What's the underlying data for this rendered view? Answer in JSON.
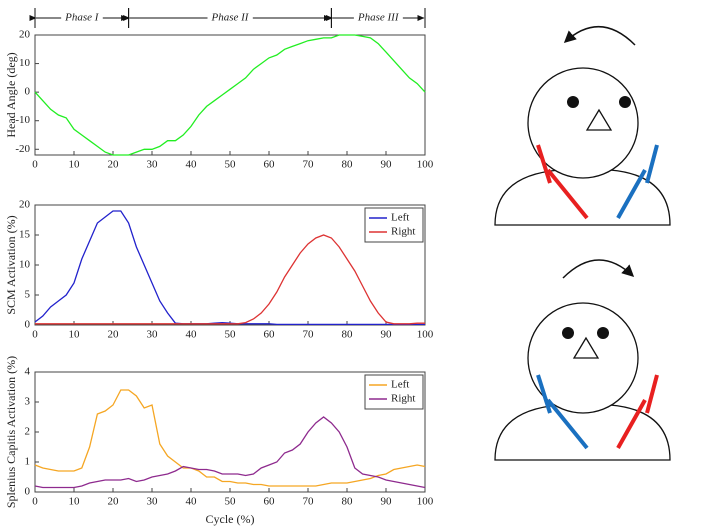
{
  "chart_data": [
    {
      "type": "line",
      "ylabel": "Head Angle (deg)",
      "ylim": [
        -22,
        20
      ],
      "yticks": [
        -20,
        -10,
        0,
        10,
        20
      ],
      "xlim": [
        0,
        100
      ],
      "xticks": [
        0,
        10,
        20,
        30,
        40,
        50,
        60,
        70,
        80,
        90,
        100
      ],
      "phases": [
        {
          "label": "Phase I",
          "start": 0,
          "end": 24
        },
        {
          "label": "Phase II",
          "start": 24,
          "end": 76
        },
        {
          "label": "Phase III",
          "start": 76,
          "end": 100
        }
      ],
      "x": [
        0,
        2,
        4,
        6,
        8,
        10,
        12,
        14,
        16,
        18,
        20,
        22,
        24,
        26,
        28,
        30,
        32,
        34,
        36,
        38,
        40,
        42,
        44,
        46,
        48,
        50,
        52,
        54,
        56,
        58,
        60,
        62,
        64,
        66,
        68,
        70,
        72,
        74,
        76,
        78,
        80,
        82,
        84,
        86,
        88,
        90,
        92,
        94,
        96,
        98,
        100
      ],
      "series": [
        {
          "color": "#22ee22",
          "values": [
            0,
            -3,
            -6,
            -8,
            -9,
            -13,
            -15,
            -17,
            -19,
            -21,
            -22,
            -22,
            -22,
            -21,
            -20,
            -20,
            -19,
            -17,
            -17,
            -15,
            -12,
            -8,
            -5,
            -3,
            -1,
            1,
            3,
            5,
            8,
            10,
            12,
            13,
            15,
            16,
            17,
            18,
            18.5,
            19,
            19,
            20,
            20,
            20,
            19.5,
            19,
            17,
            14,
            11,
            8,
            5,
            3,
            0
          ]
        }
      ]
    },
    {
      "type": "line",
      "ylabel": "SCM Activation (%)",
      "ylim": [
        0,
        20
      ],
      "yticks": [
        0,
        5,
        10,
        15,
        20
      ],
      "xlim": [
        0,
        100
      ],
      "xticks": [
        0,
        10,
        20,
        30,
        40,
        50,
        60,
        70,
        80,
        90,
        100
      ],
      "legend": "upper right",
      "x": [
        0,
        2,
        4,
        6,
        8,
        10,
        12,
        14,
        16,
        18,
        20,
        22,
        24,
        26,
        28,
        30,
        32,
        34,
        36,
        38,
        40,
        42,
        44,
        46,
        48,
        50,
        52,
        54,
        56,
        58,
        60,
        62,
        64,
        66,
        68,
        70,
        72,
        74,
        76,
        78,
        80,
        82,
        84,
        86,
        88,
        90,
        92,
        94,
        96,
        98,
        100
      ],
      "series": [
        {
          "name": "Left",
          "color": "#2222cc",
          "values": [
            0.5,
            1.5,
            3,
            4,
            5,
            7,
            11,
            14,
            17,
            18,
            19,
            19,
            17,
            13,
            10,
            7,
            4,
            2,
            0.3,
            0.2,
            0.2,
            0.2,
            0.2,
            0.3,
            0.4,
            0.3,
            0.2,
            0.2,
            0.2,
            0.2,
            0.2,
            0.1,
            0.1,
            0.1,
            0.1,
            0.1,
            0.1,
            0.1,
            0.1,
            0.1,
            0.1,
            0.1,
            0.1,
            0.1,
            0.1,
            0.1,
            0.1,
            0.1,
            0.1,
            0.1,
            0.1
          ]
        },
        {
          "name": "Right",
          "color": "#dd3333",
          "values": [
            0.2,
            0.2,
            0.2,
            0.2,
            0.2,
            0.2,
            0.2,
            0.2,
            0.2,
            0.2,
            0.2,
            0.2,
            0.2,
            0.2,
            0.2,
            0.2,
            0.2,
            0.2,
            0.2,
            0.2,
            0.2,
            0.2,
            0.2,
            0.2,
            0.2,
            0.2,
            0.2,
            0.4,
            1,
            2,
            3.5,
            5.5,
            8,
            10,
            12,
            13.5,
            14.5,
            15,
            14.5,
            13,
            11,
            9,
            6.5,
            4,
            2,
            0.5,
            0.2,
            0.2,
            0.2,
            0.3,
            0.3
          ]
        }
      ]
    },
    {
      "type": "line",
      "ylabel": "Splenius Capitis Activation (%)",
      "xlabel": "Cycle (%)",
      "ylim": [
        0,
        4
      ],
      "yticks": [
        0,
        1,
        2,
        3,
        4
      ],
      "xlim": [
        0,
        100
      ],
      "xticks": [
        0,
        10,
        20,
        30,
        40,
        50,
        60,
        70,
        80,
        90,
        100
      ],
      "legend": "upper right",
      "x": [
        0,
        2,
        4,
        6,
        8,
        10,
        12,
        14,
        16,
        18,
        20,
        22,
        24,
        26,
        28,
        30,
        32,
        34,
        36,
        38,
        40,
        42,
        44,
        46,
        48,
        50,
        52,
        54,
        56,
        58,
        60,
        62,
        64,
        66,
        68,
        70,
        72,
        74,
        76,
        78,
        80,
        82,
        84,
        86,
        88,
        90,
        92,
        94,
        96,
        98,
        100
      ],
      "series": [
        {
          "name": "Left",
          "color": "#f5a623",
          "values": [
            0.9,
            0.8,
            0.75,
            0.7,
            0.7,
            0.7,
            0.8,
            1.5,
            2.6,
            2.7,
            2.9,
            3.4,
            3.4,
            3.2,
            2.8,
            2.9,
            1.6,
            1.2,
            1.0,
            0.8,
            0.8,
            0.7,
            0.5,
            0.5,
            0.35,
            0.35,
            0.3,
            0.3,
            0.25,
            0.25,
            0.2,
            0.2,
            0.2,
            0.2,
            0.2,
            0.2,
            0.2,
            0.25,
            0.3,
            0.3,
            0.3,
            0.35,
            0.4,
            0.45,
            0.55,
            0.6,
            0.75,
            0.8,
            0.85,
            0.9,
            0.85
          ]
        },
        {
          "name": "Right",
          "color": "#8e2a8e",
          "values": [
            0.2,
            0.15,
            0.15,
            0.15,
            0.15,
            0.15,
            0.2,
            0.3,
            0.35,
            0.4,
            0.4,
            0.4,
            0.45,
            0.35,
            0.4,
            0.5,
            0.55,
            0.6,
            0.7,
            0.85,
            0.8,
            0.75,
            0.75,
            0.7,
            0.6,
            0.6,
            0.6,
            0.55,
            0.6,
            0.8,
            0.9,
            1.0,
            1.3,
            1.4,
            1.6,
            2.0,
            2.3,
            2.5,
            2.3,
            2.0,
            1.5,
            0.8,
            0.6,
            0.55,
            0.5,
            0.4,
            0.35,
            0.3,
            0.25,
            0.2,
            0.15
          ]
        }
      ]
    }
  ]
}
